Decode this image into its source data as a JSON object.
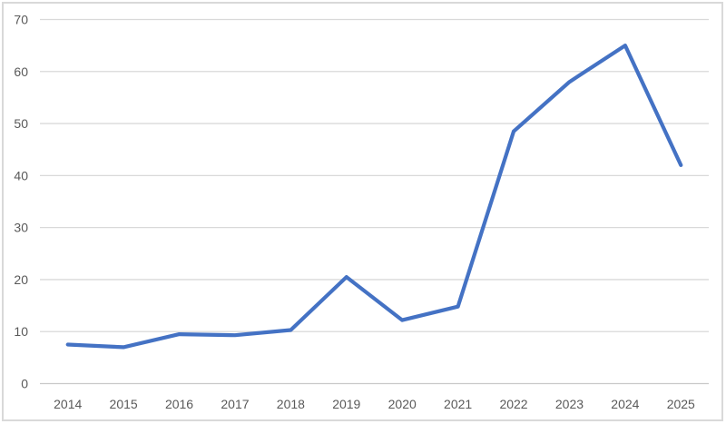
{
  "chart_data": {
    "type": "line",
    "title": "",
    "xlabel": "",
    "ylabel": "",
    "categories": [
      "2014",
      "2015",
      "2016",
      "2017",
      "2018",
      "2019",
      "2020",
      "2021",
      "2022",
      "2023",
      "2024",
      "2025"
    ],
    "values": [
      7.5,
      7,
      9.5,
      9.3,
      10.3,
      20.5,
      12.2,
      14.8,
      48.5,
      58,
      65,
      42
    ],
    "ylim": [
      0,
      70
    ],
    "ytick_step": 10,
    "y_tick_labels": [
      "0",
      "10",
      "20",
      "30",
      "40",
      "50",
      "60",
      "70"
    ],
    "grid": true,
    "legend": false,
    "layout_hints": {
      "gridlines": "horizontal-only",
      "tick_marks": "none",
      "line_style": "solid, rounded joins, no markers"
    },
    "colors": {
      "line": "#4472C4",
      "gridline": "#D9D9D9",
      "axis_line": "#C9C9C9",
      "tick_label": "#595959",
      "frame_border": "#D9D9D9",
      "background": "#FFFFFF"
    }
  }
}
